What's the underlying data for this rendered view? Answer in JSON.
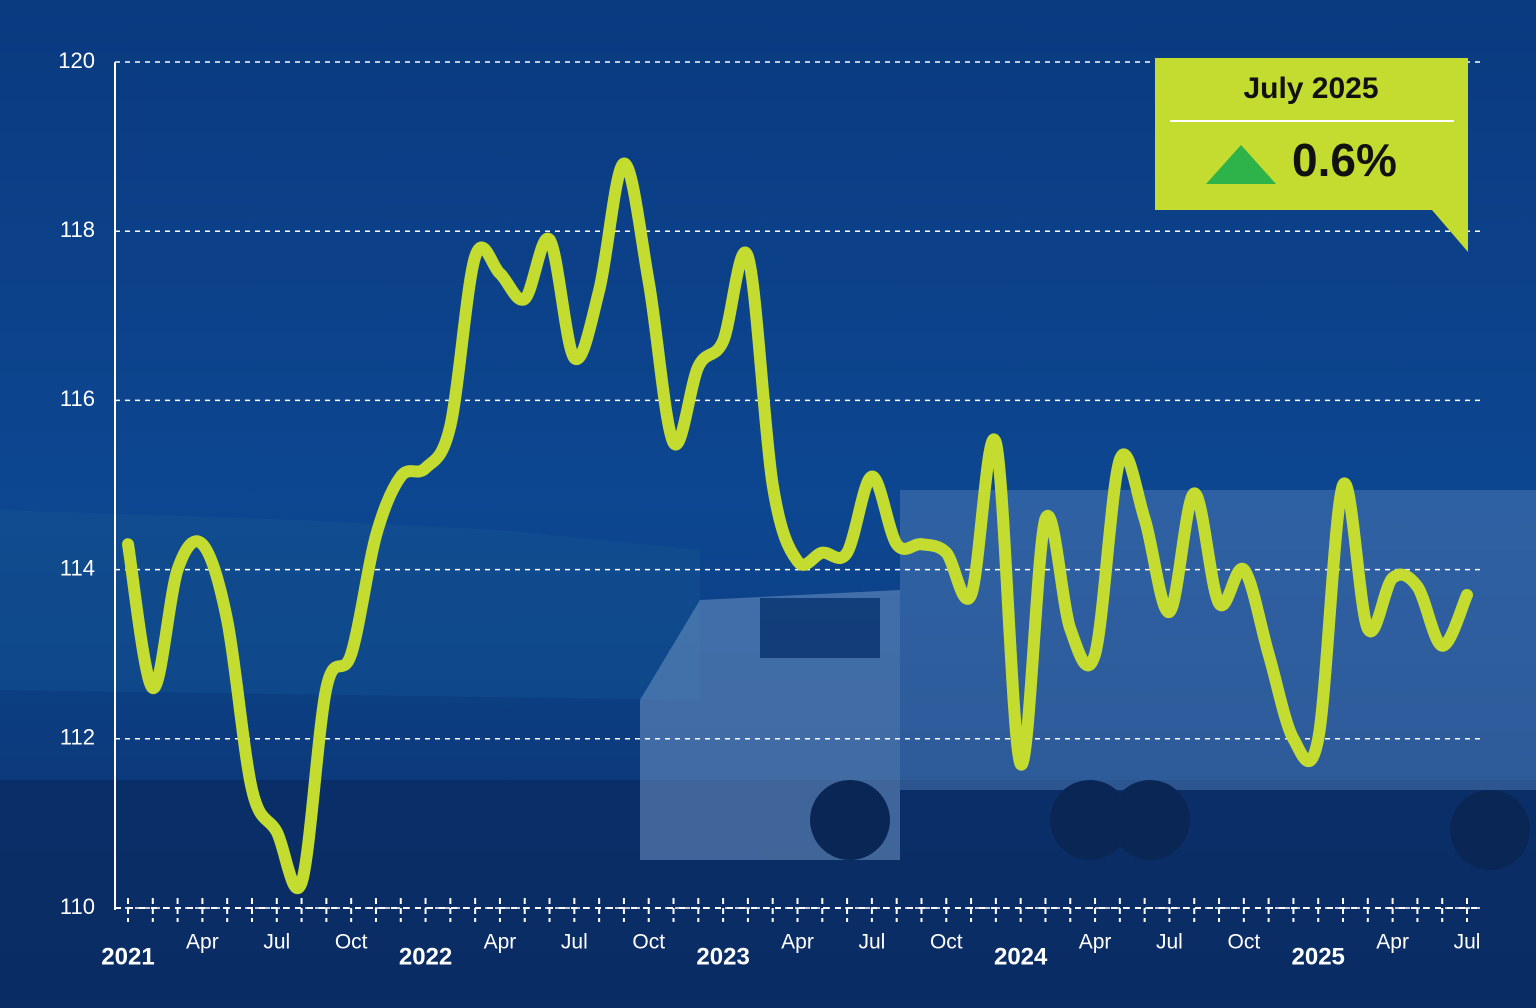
{
  "chart_data": {
    "type": "line",
    "categories": [
      "2021",
      null,
      null,
      "Apr",
      null,
      null,
      "Jul",
      null,
      null,
      "Oct",
      null,
      null,
      "2022",
      null,
      null,
      "Apr",
      null,
      null,
      "Jul",
      null,
      null,
      "Oct",
      null,
      null,
      "2023",
      null,
      null,
      "Apr",
      null,
      null,
      "Jul",
      null,
      null,
      "Oct",
      null,
      null,
      "2024",
      null,
      null,
      "Apr",
      null,
      null,
      "Jul",
      null,
      null,
      "Oct",
      null,
      null,
      "2025",
      null,
      null,
      "Apr",
      null,
      null,
      "Jul"
    ],
    "series": [
      {
        "color": "#c4dc2f",
        "values": [
          114.3,
          112.6,
          114.0,
          114.3,
          113.4,
          111.4,
          110.9,
          110.3,
          112.6,
          113.0,
          114.4,
          115.1,
          115.2,
          115.7,
          117.7,
          117.5,
          117.2,
          117.9,
          116.5,
          117.3,
          118.8,
          117.4,
          115.5,
          116.4,
          116.7,
          117.7,
          115.0,
          114.1,
          114.2,
          114.2,
          115.1,
          114.3,
          114.3,
          114.2,
          113.7,
          115.5,
          111.7,
          114.6,
          113.3,
          113.0,
          115.3,
          114.6,
          113.5,
          114.9,
          113.6,
          114.0,
          113.0,
          112.0,
          112.0,
          115.0,
          113.3,
          113.9,
          113.8,
          113.1,
          113.7
        ]
      }
    ],
    "ylim": [
      110,
      120
    ],
    "yticks": [
      110,
      112,
      114,
      116,
      118,
      120
    ],
    "grid": true,
    "annotation": {
      "title": "July 2025",
      "value": "0.6%"
    }
  }
}
